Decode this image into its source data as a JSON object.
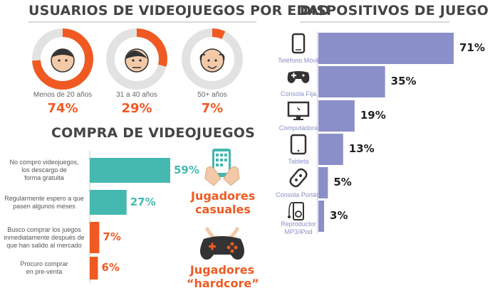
{
  "titles": {
    "age": "USUARIOS DE VIDEOJUEGOS POR EDAD",
    "purchase": "COMPRA DE VIDEOJUEGOS",
    "devices": "DISPOSITIVOS DE JUEGO"
  },
  "players": {
    "casual": [
      "Jugadores",
      "casuales"
    ],
    "hardcore": [
      "Jugadores",
      "“hardcore”"
    ]
  },
  "colors": {
    "orange": "#f05a22",
    "teal": "#45b8b0",
    "purple": "#8a8fc9",
    "ring_gray": "#e2e2e2",
    "title": "#444444"
  },
  "chart_data": [
    {
      "type": "pie",
      "title": "USUARIOS DE VIDEOJUEGOS POR EDAD",
      "categories": [
        "Menos de 20 años",
        "31 a 40 años",
        "50+ años"
      ],
      "values": [
        74,
        29,
        7
      ],
      "value_labels": [
        "74%",
        "29%",
        "7%"
      ]
    },
    {
      "type": "bar",
      "title": "COMPRA DE VIDEOJUEGOS",
      "categories": [
        [
          "No compro videojuegos,",
          "los descargo de",
          "forma gratuita"
        ],
        [
          "Regularmente espero a que",
          "pasen algunos meses"
        ],
        [
          "Busco comprar los juegos",
          "inmediatamente después de",
          "que han salido al mercado"
        ],
        [
          "Procuro comprar",
          "en pre-venta"
        ]
      ],
      "values": [
        59,
        27,
        7,
        6
      ],
      "value_labels": [
        "59%",
        "27%",
        "7%",
        "6%"
      ],
      "colors": [
        "#45b8b0",
        "#45b8b0",
        "#f05a22",
        "#f05a22"
      ]
    },
    {
      "type": "bar",
      "title": "DISPOSITIVOS DE JUEGO",
      "categories": [
        [
          "Teléfono Móvil"
        ],
        [
          "Consola Fija"
        ],
        [
          "Computadora"
        ],
        [
          "Tableta"
        ],
        [
          "Consola Portátil"
        ],
        [
          "Reproductor",
          "MP3/iPod"
        ]
      ],
      "icons": [
        "phone-icon",
        "gamepad-icon",
        "monitor-icon",
        "tablet-icon",
        "handheld-console-icon",
        "mp3-player-icon"
      ],
      "values": [
        71,
        35,
        19,
        13,
        5,
        3
      ],
      "value_labels": [
        "71%",
        "35%",
        "19%",
        "13%",
        "5%",
        "3%"
      ]
    }
  ]
}
